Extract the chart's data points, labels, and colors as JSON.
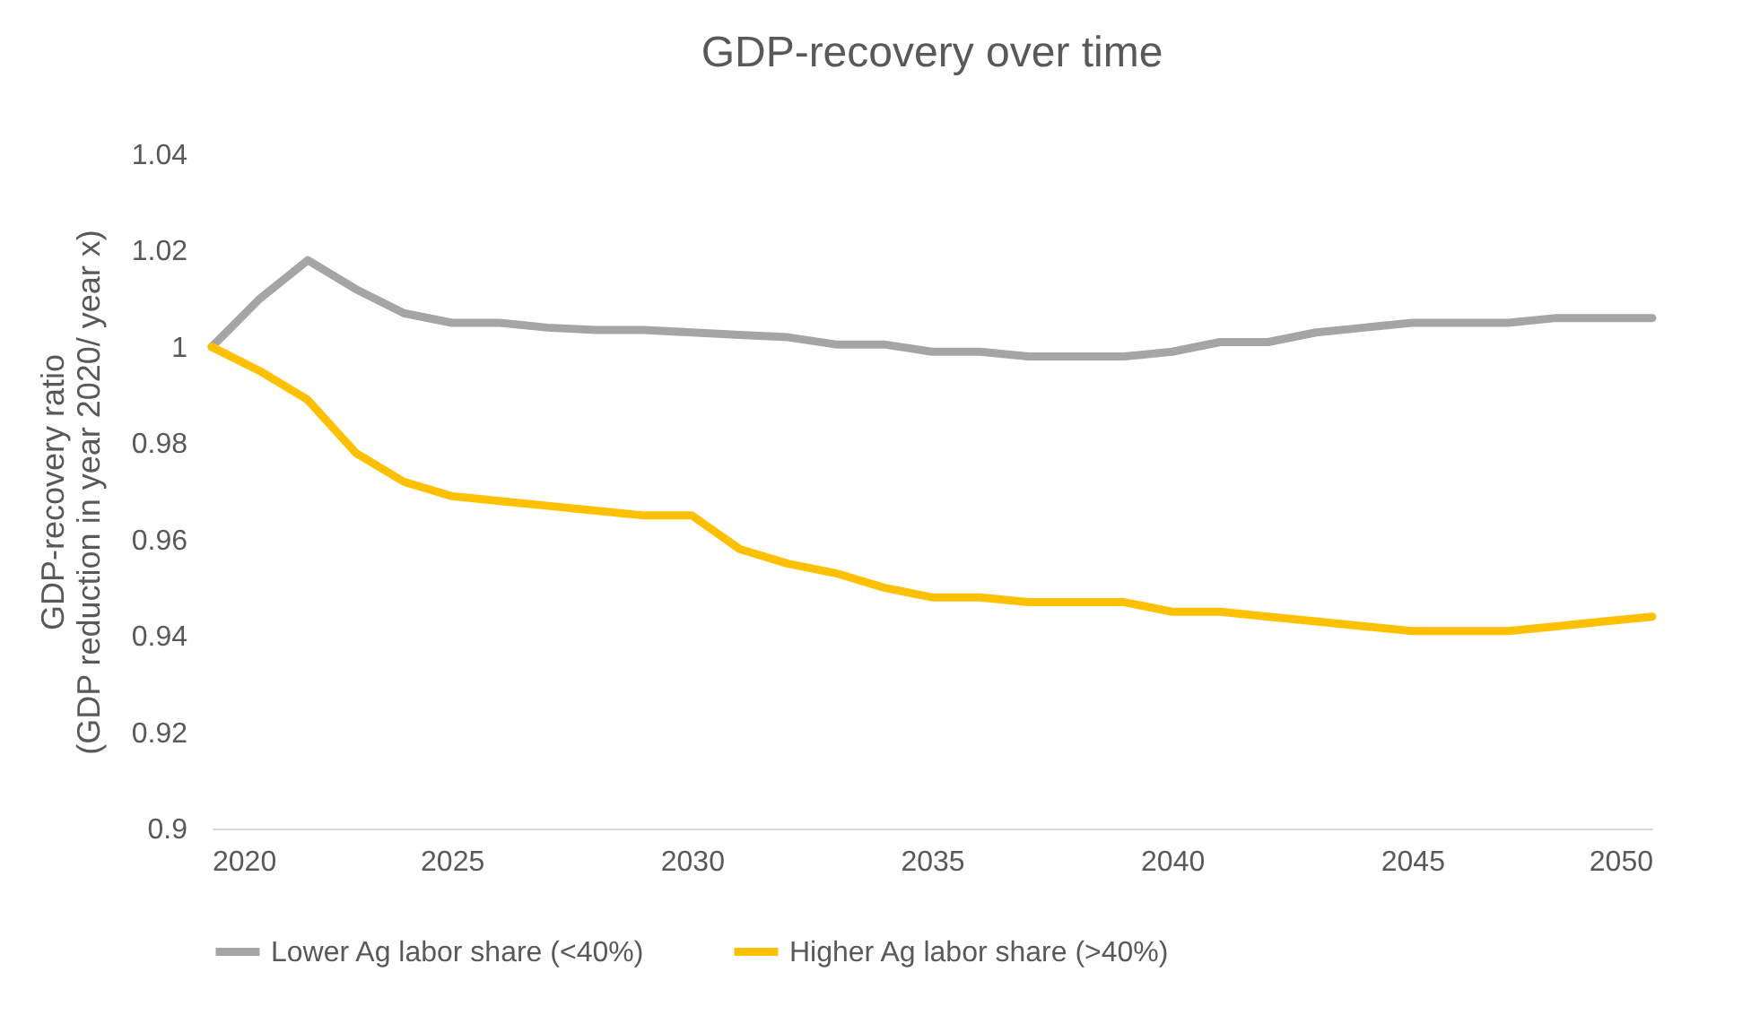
{
  "chart_data": {
    "type": "line",
    "title": "GDP-recovery over time",
    "ylabel": "GDP-recovery ratio\n(GDP reduction in year 2020/ year x)",
    "x": [
      2020,
      2021,
      2022,
      2023,
      2024,
      2025,
      2026,
      2027,
      2028,
      2029,
      2030,
      2031,
      2032,
      2033,
      2034,
      2035,
      2036,
      2037,
      2038,
      2039,
      2040,
      2041,
      2042,
      2043,
      2044,
      2045,
      2046,
      2047,
      2048,
      2049,
      2050
    ],
    "series": [
      {
        "name": "Lower Ag labor share (<40%)",
        "color": "#a5a5a5",
        "values": [
          1,
          1.01,
          1.018,
          1.012,
          1.007,
          1.005,
          1.005,
          1.004,
          1.0035,
          1.0035,
          1.003,
          1.0025,
          1.002,
          1.0005,
          1.0005,
          0.999,
          0.999,
          0.998,
          0.998,
          0.998,
          0.999,
          1.001,
          1.001,
          1.003,
          1.004,
          1.005,
          1.005,
          1.005,
          1.006,
          1.006,
          1.006
        ]
      },
      {
        "name": "Higher Ag labor share (>40%)",
        "color": "#ffc000",
        "values": [
          1,
          0.995,
          0.989,
          0.978,
          0.972,
          0.969,
          0.968,
          0.967,
          0.966,
          0.965,
          0.965,
          0.958,
          0.955,
          0.953,
          0.95,
          0.948,
          0.948,
          0.947,
          0.947,
          0.947,
          0.945,
          0.945,
          0.944,
          0.943,
          0.942,
          0.941,
          0.941,
          0.941,
          0.942,
          0.943,
          0.944
        ]
      }
    ],
    "xlim": [
      2020,
      2050
    ],
    "xticks": [
      2020,
      2025,
      2030,
      2035,
      2040,
      2045,
      2050
    ],
    "ylim": [
      0.9,
      1.04
    ],
    "yticks": [
      0.9,
      0.92,
      0.94,
      0.96,
      0.98,
      1,
      1.02,
      1.04
    ],
    "grid": false,
    "legend": "bottom",
    "marker": "none",
    "line_style": "solid"
  }
}
